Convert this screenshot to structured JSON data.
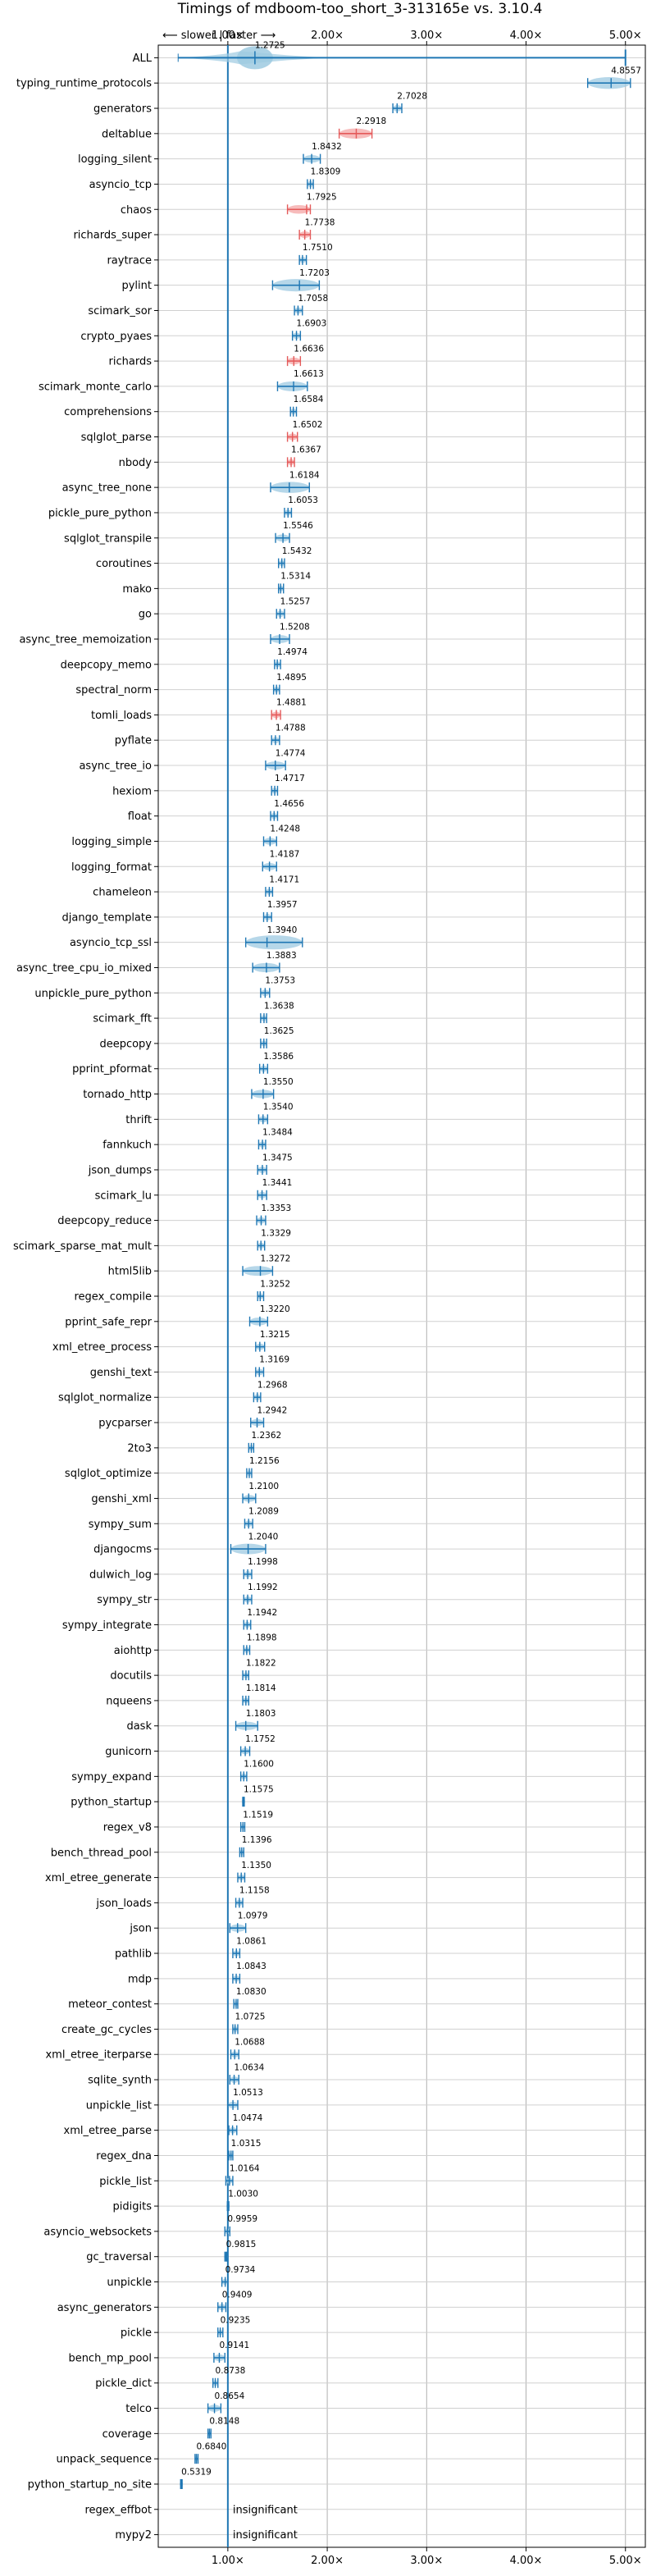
{
  "chart_data": {
    "type": "violin",
    "title": "Timings of mdboom-too_short_3-313165e vs. 3.10.4",
    "direction_note": "⟵ slower | faster ⟶",
    "xlim": [
      0.3,
      5.2
    ],
    "xticks": [
      1,
      2,
      3,
      4,
      5
    ],
    "xtick_labels": [
      "1.00×",
      "2.00×",
      "3.00×",
      "4.00×",
      "5.00×"
    ],
    "grid": true,
    "reference_line": 1.0,
    "benchmarks": [
      {
        "name": "ALL",
        "value": 1.2725,
        "lo": 0.5,
        "hi": 5.0,
        "kind": "all"
      },
      {
        "name": "typing_runtime_protocols",
        "value": 4.8557,
        "lo": 4.62,
        "hi": 5.05
      },
      {
        "name": "generators",
        "value": 2.7028,
        "lo": 2.66,
        "hi": 2.75
      },
      {
        "name": "deltablue",
        "value": 2.2918,
        "lo": 2.12,
        "hi": 2.45,
        "color": "red"
      },
      {
        "name": "logging_silent",
        "value": 1.8432,
        "lo": 1.76,
        "hi": 1.93
      },
      {
        "name": "asyncio_tcp",
        "value": 1.8309,
        "lo": 1.8,
        "hi": 1.86
      },
      {
        "name": "chaos",
        "value": 1.7925,
        "lo": 1.6,
        "hi": 1.83,
        "color": "red"
      },
      {
        "name": "richards_super",
        "value": 1.7738,
        "lo": 1.72,
        "hi": 1.83,
        "color": "red"
      },
      {
        "name": "raytrace",
        "value": 1.751,
        "lo": 1.72,
        "hi": 1.79
      },
      {
        "name": "pylint",
        "value": 1.7203,
        "lo": 1.45,
        "hi": 1.92
      },
      {
        "name": "scimark_sor",
        "value": 1.7058,
        "lo": 1.67,
        "hi": 1.75
      },
      {
        "name": "crypto_pyaes",
        "value": 1.6903,
        "lo": 1.65,
        "hi": 1.73
      },
      {
        "name": "richards",
        "value": 1.6636,
        "lo": 1.6,
        "hi": 1.73,
        "color": "red"
      },
      {
        "name": "scimark_monte_carlo",
        "value": 1.6613,
        "lo": 1.5,
        "hi": 1.8
      },
      {
        "name": "comprehensions",
        "value": 1.6584,
        "lo": 1.63,
        "hi": 1.69
      },
      {
        "name": "sqlglot_parse",
        "value": 1.6502,
        "lo": 1.6,
        "hi": 1.7,
        "color": "red"
      },
      {
        "name": "nbody",
        "value": 1.6367,
        "lo": 1.6,
        "hi": 1.67,
        "color": "red"
      },
      {
        "name": "async_tree_none",
        "value": 1.6184,
        "lo": 1.43,
        "hi": 1.82
      },
      {
        "name": "pickle_pure_python",
        "value": 1.6053,
        "lo": 1.57,
        "hi": 1.64
      },
      {
        "name": "sqlglot_transpile",
        "value": 1.5546,
        "lo": 1.48,
        "hi": 1.62
      },
      {
        "name": "coroutines",
        "value": 1.5432,
        "lo": 1.51,
        "hi": 1.57
      },
      {
        "name": "mako",
        "value": 1.5314,
        "lo": 1.51,
        "hi": 1.56
      },
      {
        "name": "go",
        "value": 1.5257,
        "lo": 1.49,
        "hi": 1.57
      },
      {
        "name": "async_tree_memoization",
        "value": 1.5208,
        "lo": 1.43,
        "hi": 1.62
      },
      {
        "name": "deepcopy_memo",
        "value": 1.4974,
        "lo": 1.47,
        "hi": 1.53
      },
      {
        "name": "spectral_norm",
        "value": 1.4895,
        "lo": 1.46,
        "hi": 1.52
      },
      {
        "name": "tomli_loads",
        "value": 1.4881,
        "lo": 1.44,
        "hi": 1.53,
        "color": "red"
      },
      {
        "name": "pyflate",
        "value": 1.4788,
        "lo": 1.44,
        "hi": 1.52
      },
      {
        "name": "async_tree_io",
        "value": 1.4774,
        "lo": 1.38,
        "hi": 1.58
      },
      {
        "name": "hexiom",
        "value": 1.4717,
        "lo": 1.44,
        "hi": 1.5
      },
      {
        "name": "float",
        "value": 1.4656,
        "lo": 1.43,
        "hi": 1.5
      },
      {
        "name": "logging_simple",
        "value": 1.4248,
        "lo": 1.36,
        "hi": 1.49
      },
      {
        "name": "logging_format",
        "value": 1.4187,
        "lo": 1.35,
        "hi": 1.49
      },
      {
        "name": "chameleon",
        "value": 1.4171,
        "lo": 1.38,
        "hi": 1.45
      },
      {
        "name": "django_template",
        "value": 1.3957,
        "lo": 1.36,
        "hi": 1.44
      },
      {
        "name": "asyncio_tcp_ssl",
        "value": 1.394,
        "lo": 1.18,
        "hi": 1.75
      },
      {
        "name": "async_tree_cpu_io_mixed",
        "value": 1.3883,
        "lo": 1.25,
        "hi": 1.52
      },
      {
        "name": "unpickle_pure_python",
        "value": 1.3753,
        "lo": 1.33,
        "hi": 1.42
      },
      {
        "name": "scimark_fft",
        "value": 1.3638,
        "lo": 1.33,
        "hi": 1.39
      },
      {
        "name": "deepcopy",
        "value": 1.3625,
        "lo": 1.33,
        "hi": 1.39
      },
      {
        "name": "pprint_pformat",
        "value": 1.3586,
        "lo": 1.32,
        "hi": 1.4
      },
      {
        "name": "tornado_http",
        "value": 1.355,
        "lo": 1.24,
        "hi": 1.46
      },
      {
        "name": "thrift",
        "value": 1.354,
        "lo": 1.31,
        "hi": 1.4
      },
      {
        "name": "fannkuch",
        "value": 1.3484,
        "lo": 1.31,
        "hi": 1.38
      },
      {
        "name": "json_dumps",
        "value": 1.3475,
        "lo": 1.3,
        "hi": 1.39
      },
      {
        "name": "scimark_lu",
        "value": 1.3441,
        "lo": 1.3,
        "hi": 1.39
      },
      {
        "name": "deepcopy_reduce",
        "value": 1.3353,
        "lo": 1.29,
        "hi": 1.38
      },
      {
        "name": "scimark_sparse_mat_mult",
        "value": 1.3329,
        "lo": 1.3,
        "hi": 1.37
      },
      {
        "name": "html5lib",
        "value": 1.3272,
        "lo": 1.15,
        "hi": 1.45
      },
      {
        "name": "regex_compile",
        "value": 1.3252,
        "lo": 1.3,
        "hi": 1.36
      },
      {
        "name": "pprint_safe_repr",
        "value": 1.322,
        "lo": 1.22,
        "hi": 1.4
      },
      {
        "name": "xml_etree_process",
        "value": 1.3215,
        "lo": 1.28,
        "hi": 1.37
      },
      {
        "name": "genshi_text",
        "value": 1.3169,
        "lo": 1.28,
        "hi": 1.36
      },
      {
        "name": "sqlglot_normalize",
        "value": 1.2968,
        "lo": 1.26,
        "hi": 1.33
      },
      {
        "name": "pycparser",
        "value": 1.2942,
        "lo": 1.23,
        "hi": 1.36
      },
      {
        "name": "2to3",
        "value": 1.2362,
        "lo": 1.21,
        "hi": 1.26
      },
      {
        "name": "sqlglot_optimize",
        "value": 1.2156,
        "lo": 1.19,
        "hi": 1.24
      },
      {
        "name": "genshi_xml",
        "value": 1.21,
        "lo": 1.15,
        "hi": 1.28
      },
      {
        "name": "sympy_sum",
        "value": 1.2089,
        "lo": 1.17,
        "hi": 1.25
      },
      {
        "name": "djangocms",
        "value": 1.204,
        "lo": 1.03,
        "hi": 1.38
      },
      {
        "name": "dulwich_log",
        "value": 1.1998,
        "lo": 1.16,
        "hi": 1.24
      },
      {
        "name": "sympy_str",
        "value": 1.1992,
        "lo": 1.16,
        "hi": 1.24
      },
      {
        "name": "sympy_integrate",
        "value": 1.1942,
        "lo": 1.16,
        "hi": 1.23
      },
      {
        "name": "aiohttp",
        "value": 1.1898,
        "lo": 1.16,
        "hi": 1.22
      },
      {
        "name": "docutils",
        "value": 1.1822,
        "lo": 1.15,
        "hi": 1.21
      },
      {
        "name": "nqueens",
        "value": 1.1814,
        "lo": 1.15,
        "hi": 1.21
      },
      {
        "name": "dask",
        "value": 1.1803,
        "lo": 1.08,
        "hi": 1.3
      },
      {
        "name": "gunicorn",
        "value": 1.1752,
        "lo": 1.13,
        "hi": 1.22
      },
      {
        "name": "sympy_expand",
        "value": 1.16,
        "lo": 1.13,
        "hi": 1.19
      },
      {
        "name": "python_startup",
        "value": 1.1575,
        "lo": 1.15,
        "hi": 1.165
      },
      {
        "name": "regex_v8",
        "value": 1.1519,
        "lo": 1.13,
        "hi": 1.17
      },
      {
        "name": "bench_thread_pool",
        "value": 1.1396,
        "lo": 1.12,
        "hi": 1.16
      },
      {
        "name": "xml_etree_generate",
        "value": 1.135,
        "lo": 1.1,
        "hi": 1.17
      },
      {
        "name": "json_loads",
        "value": 1.1158,
        "lo": 1.08,
        "hi": 1.15
      },
      {
        "name": "json",
        "value": 1.0979,
        "lo": 1.02,
        "hi": 1.18
      },
      {
        "name": "pathlib",
        "value": 1.0861,
        "lo": 1.05,
        "hi": 1.12
      },
      {
        "name": "mdp",
        "value": 1.0843,
        "lo": 1.05,
        "hi": 1.12
      },
      {
        "name": "meteor_contest",
        "value": 1.083,
        "lo": 1.06,
        "hi": 1.1
      },
      {
        "name": "create_gc_cycles",
        "value": 1.0725,
        "lo": 1.05,
        "hi": 1.1
      },
      {
        "name": "xml_etree_iterparse",
        "value": 1.0688,
        "lo": 1.03,
        "hi": 1.11
      },
      {
        "name": "sqlite_synth",
        "value": 1.0634,
        "lo": 1.02,
        "hi": 1.11
      },
      {
        "name": "unpickle_list",
        "value": 1.0513,
        "lo": 1.0,
        "hi": 1.1
      },
      {
        "name": "xml_etree_parse",
        "value": 1.0474,
        "lo": 1.01,
        "hi": 1.09
      },
      {
        "name": "regex_dna",
        "value": 1.0315,
        "lo": 1.01,
        "hi": 1.05
      },
      {
        "name": "pickle_list",
        "value": 1.0164,
        "lo": 0.98,
        "hi": 1.05
      },
      {
        "name": "pidigits",
        "value": 1.003,
        "lo": 0.995,
        "hi": 1.01
      },
      {
        "name": "asyncio_websockets",
        "value": 0.9959,
        "lo": 0.97,
        "hi": 1.02
      },
      {
        "name": "gc_traversal",
        "value": 0.9815,
        "lo": 0.97,
        "hi": 0.99
      },
      {
        "name": "unpickle",
        "value": 0.9734,
        "lo": 0.94,
        "hi": 1.0
      },
      {
        "name": "async_generators",
        "value": 0.9409,
        "lo": 0.9,
        "hi": 0.98
      },
      {
        "name": "pickle",
        "value": 0.9235,
        "lo": 0.9,
        "hi": 0.95
      },
      {
        "name": "bench_mp_pool",
        "value": 0.9141,
        "lo": 0.86,
        "hi": 0.97
      },
      {
        "name": "pickle_dict",
        "value": 0.8738,
        "lo": 0.85,
        "hi": 0.9
      },
      {
        "name": "telco",
        "value": 0.8654,
        "lo": 0.8,
        "hi": 0.93
      },
      {
        "name": "coverage",
        "value": 0.8148,
        "lo": 0.8,
        "hi": 0.83
      },
      {
        "name": "unpack_sequence",
        "value": 0.684,
        "lo": 0.67,
        "hi": 0.7
      },
      {
        "name": "python_startup_no_site",
        "value": 0.5319,
        "lo": 0.525,
        "hi": 0.54
      },
      {
        "name": "regex_effbot",
        "value": null,
        "label": "insignificant"
      },
      {
        "name": "mypy2",
        "value": null,
        "label": "insignificant"
      }
    ]
  }
}
